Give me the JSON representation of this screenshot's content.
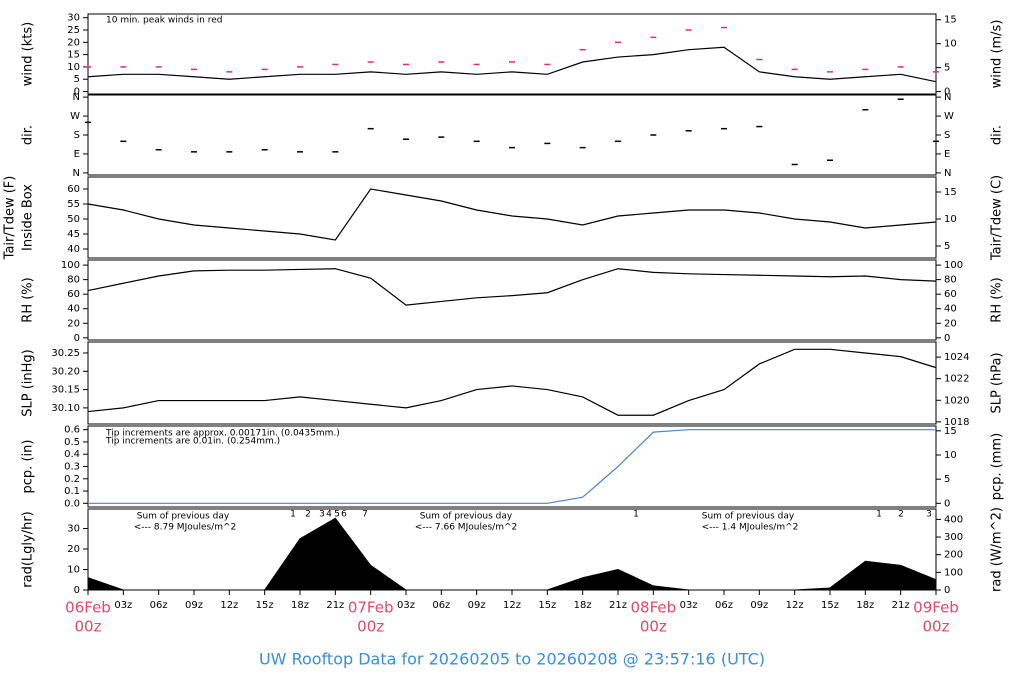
{
  "title": "UW Rooftop Data for 20260205  to  20260208 @ 23:57:16  (UTC)",
  "x_axis": {
    "categories": [
      "00z",
      "03z",
      "06z",
      "09z",
      "12z",
      "15z",
      "18z",
      "21z",
      "00z",
      "03z",
      "06z",
      "09z",
      "12z",
      "15z",
      "18z",
      "21z",
      "00z",
      "03z",
      "06z",
      "09z",
      "12z",
      "15z",
      "18z",
      "21z",
      "00z"
    ],
    "days": [
      "06Feb",
      null,
      null,
      null,
      null,
      null,
      null,
      null,
      "07Feb",
      null,
      null,
      null,
      null,
      null,
      null,
      null,
      "08Feb",
      null,
      null,
      null,
      null,
      null,
      null,
      null,
      "09Feb"
    ]
  },
  "chart_data": [
    {
      "type": "line",
      "ylabel": "wind (kts)",
      "y2label": "wind (m/s)",
      "ylim": [
        -1,
        31.5
      ],
      "yticks": [
        0,
        5,
        10,
        15,
        20,
        25,
        30
      ],
      "y2lim": [
        -0.51,
        16.2
      ],
      "y2ticks": [
        0,
        5,
        10,
        15
      ],
      "annotations": [
        {
          "text": "10 min. peak winds in red",
          "color": "#e0457b"
        }
      ],
      "series": [
        {
          "color": "#000000",
          "values": [
            6,
            7,
            7,
            6,
            5,
            6,
            7,
            7,
            8,
            7,
            8,
            7,
            8,
            7,
            12,
            14,
            15,
            17,
            18,
            8,
            6,
            5,
            6,
            7,
            4
          ]
        },
        {
          "color": "#e0306a",
          "style": "dash",
          "values": [
            10,
            10,
            10,
            9,
            8,
            9,
            10,
            11,
            12,
            11,
            12,
            11,
            12,
            11,
            17,
            20,
            22,
            25,
            26,
            13,
            9,
            8,
            9,
            10,
            8
          ]
        }
      ]
    },
    {
      "type": "scatter",
      "ylabel": "dir.",
      "y2label": "dir.",
      "ylim": [
        -10,
        370
      ],
      "yticks": [
        {
          "value": 0,
          "label": "N"
        },
        {
          "value": 90,
          "label": "E"
        },
        {
          "value": 180,
          "label": "S"
        },
        {
          "value": 270,
          "label": "W"
        },
        {
          "value": 360,
          "label": "N"
        }
      ],
      "y2lim": [
        -10,
        370
      ],
      "y2ticks": [
        {
          "value": 0,
          "label": "N"
        },
        {
          "value": 90,
          "label": "E"
        },
        {
          "value": 180,
          "label": "S"
        },
        {
          "value": 270,
          "label": "W"
        },
        {
          "value": 360,
          "label": "N"
        }
      ],
      "series": [
        {
          "color": "#000000",
          "values": [
            240,
            150,
            110,
            100,
            100,
            110,
            100,
            100,
            210,
            160,
            170,
            150,
            120,
            140,
            120,
            150,
            180,
            200,
            210,
            220,
            40,
            60,
            300,
            350,
            150
          ]
        }
      ]
    },
    {
      "type": "line",
      "ylabel": "Tair/Tdew (F)",
      "ylabel_sub": "Inside Box",
      "y2label": "Tair/Tdew (C)",
      "ylim": [
        37,
        64
      ],
      "yticks": [
        40,
        45,
        50,
        55,
        60
      ],
      "y2lim": [
        2.78,
        17.78
      ],
      "y2ticks": [
        5,
        10,
        15
      ],
      "series": [
        {
          "color": "#000000",
          "values": [
            55,
            53,
            50,
            48,
            47,
            46,
            45,
            43,
            60,
            58,
            56,
            53,
            51,
            50,
            48,
            51,
            52,
            53,
            53,
            52,
            50,
            49,
            47,
            48,
            49
          ]
        }
      ]
    },
    {
      "type": "line",
      "ylabel": "RH (%)",
      "y2label": "RH (%)",
      "ylim": [
        -3,
        107
      ],
      "yticks": [
        0,
        20,
        40,
        60,
        80,
        100
      ],
      "y2lim": [
        -3,
        107
      ],
      "y2ticks": [
        0,
        20,
        40,
        60,
        80,
        100
      ],
      "series": [
        {
          "color": "#000000",
          "values": [
            65,
            75,
            85,
            92,
            93,
            93,
            94,
            95,
            82,
            45,
            50,
            55,
            58,
            62,
            80,
            95,
            90,
            88,
            87,
            86,
            85,
            84,
            85,
            80,
            78
          ]
        }
      ]
    },
    {
      "type": "line",
      "ylabel": "SLP (inHg)",
      "y2label": "SLP (hPa)",
      "ylim": [
        30.056,
        30.28
      ],
      "yticks": [
        {
          "value": 30.1,
          "label": "30.10"
        },
        {
          "value": 30.15,
          "label": "30.15"
        },
        {
          "value": 30.2,
          "label": "30.20"
        },
        {
          "value": 30.25,
          "label": "30.25"
        }
      ],
      "y2lim": [
        1017.8,
        1025.4
      ],
      "y2ticks": [
        1018,
        1020,
        1022,
        1024
      ],
      "series": [
        {
          "color": "#000000",
          "values": [
            30.09,
            30.1,
            30.12,
            30.12,
            30.12,
            30.12,
            30.13,
            30.12,
            30.11,
            30.1,
            30.12,
            30.15,
            30.16,
            30.15,
            30.13,
            30.08,
            30.08,
            30.12,
            30.15,
            30.22,
            30.26,
            30.26,
            30.25,
            30.24,
            30.21
          ]
        }
      ]
    },
    {
      "type": "line",
      "ylabel": "pcp. (in)",
      "y2label": "pcp. (mm)",
      "ylim": [
        -0.03,
        0.63
      ],
      "yticks": [
        {
          "value": 0,
          "label": "0.0"
        },
        0.1,
        0.2,
        0.3,
        0.4,
        0.5,
        0.6
      ],
      "y2lim": [
        -0.76,
        16.0
      ],
      "y2ticks": [
        0,
        5,
        10,
        15
      ],
      "annotations": [
        {
          "text": "Tip increments are approx. 0.00171in. (0.0435mm.)",
          "color": "#e0457b"
        },
        {
          "text": "Tip increments are 0.01in. (0.254mm.)",
          "color": "#3a86d0"
        }
      ],
      "series": [
        {
          "color": "#4a86c8",
          "values": [
            0,
            0,
            0,
            0,
            0,
            0,
            0,
            0,
            0,
            0,
            0,
            0,
            0,
            0,
            0.05,
            0.3,
            0.58,
            0.6,
            0.6,
            0.6,
            0.6,
            0.6,
            0.6,
            0.6,
            0.6
          ]
        }
      ]
    },
    {
      "type": "area",
      "ylabel": "rad(Lgly/hr)",
      "y2label": "rad (W/m^2)",
      "ylim": [
        0,
        39.5
      ],
      "yticks": [
        0,
        10,
        20,
        30
      ],
      "y2lim": [
        0,
        459
      ],
      "y2ticks": [
        0,
        100,
        200,
        300,
        400
      ],
      "annotations": [
        {
          "text": "Sum of previous day",
          "color": "#a020f0"
        },
        {
          "text": "<--- 8.79 MJoules/m^2",
          "color": "#a020f0"
        },
        {
          "text": "Sum of previous day",
          "color": "#a020f0"
        },
        {
          "text": "<--- 7.66 MJoules/m^2",
          "color": "#a020f0"
        },
        {
          "text": "Sum of previous day",
          "color": "#a020f0"
        },
        {
          "text": "<--- 1.4 MJoules/m^2",
          "color": "#a020f0"
        }
      ],
      "counts": [
        1,
        2,
        3,
        4,
        5,
        6,
        7,
        1,
        1,
        2,
        3
      ],
      "counts_color": "#a020f0",
      "series": [
        {
          "color": "#000000",
          "values": [
            6,
            0,
            0,
            0,
            0,
            0,
            25,
            35,
            12,
            0,
            0,
            0,
            0,
            0,
            6,
            10,
            2,
            0,
            0,
            0,
            0,
            1,
            14,
            12,
            5
          ]
        }
      ]
    }
  ]
}
